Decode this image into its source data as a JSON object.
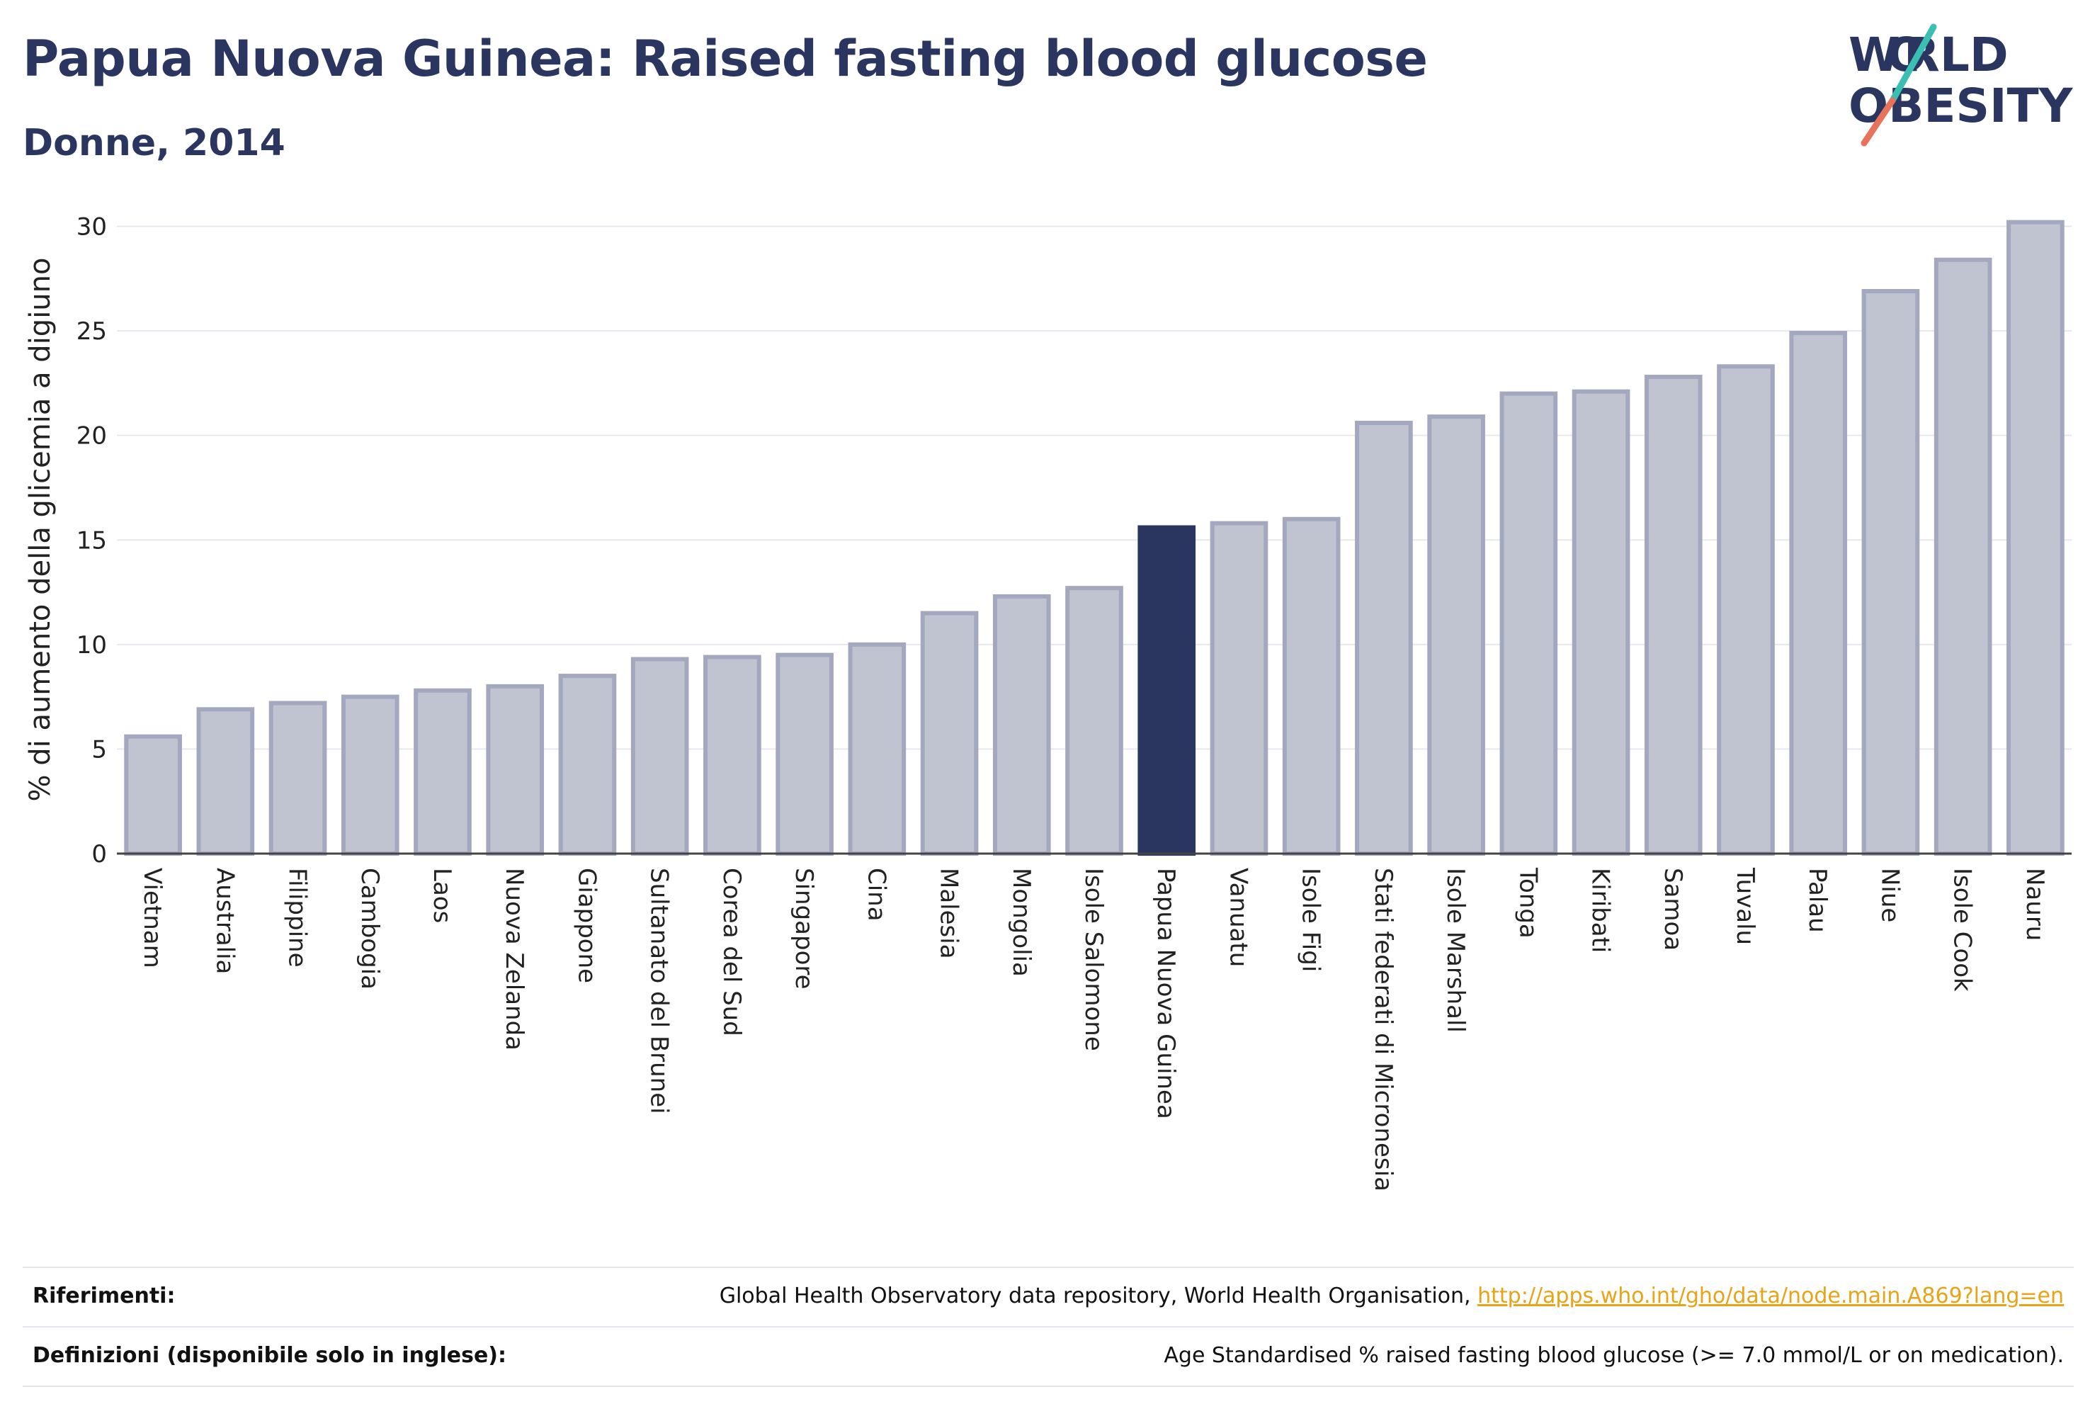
{
  "header": {
    "title": "Papua Nuova Guinea: Raised fasting blood glucose",
    "subtitle": "Donne, 2014"
  },
  "logo": {
    "line1": "W RLD",
    "line2": "BESITY",
    "accent_colors": [
      "#3bbfb2",
      "#e8735a"
    ]
  },
  "colors": {
    "bar": "#c0c3d0",
    "bar_border": "#a3a8be",
    "highlight": "#2a3560",
    "grid": "#e6e8ef",
    "link": "#e8a317"
  },
  "chart_data": {
    "type": "bar",
    "title": "Papua Nuova Guinea: Raised fasting blood glucose",
    "subtitle": "Donne, 2014",
    "xlabel": "",
    "ylabel": "% di aumento della glicemia a digiuno",
    "ylim": [
      0,
      31
    ],
    "yticks": [
      0,
      5,
      10,
      15,
      20,
      25,
      30
    ],
    "grid": true,
    "highlight": "Papua Nuova Guinea",
    "categories": [
      "Vietnam",
      "Australia",
      "Filippine",
      "Cambogia",
      "Laos",
      "Nuova Zelanda",
      "Giappone",
      "Sultanato del Brunei",
      "Corea del Sud",
      "Singapore",
      "Cina",
      "Malesia",
      "Mongolia",
      "Isole Salomone",
      "Papua Nuova Guinea",
      "Vanuatu",
      "Isole Figi",
      "Stati federati di Micronesia",
      "Isole Marshall",
      "Tonga",
      "Kiribati",
      "Samoa",
      "Tuvalu",
      "Palau",
      "Niue",
      "Isole Cook",
      "Nauru"
    ],
    "values": [
      5.6,
      6.9,
      7.2,
      7.5,
      7.8,
      8.0,
      8.5,
      9.3,
      9.4,
      9.5,
      10.0,
      11.5,
      12.3,
      12.7,
      15.6,
      15.8,
      16.0,
      20.6,
      20.9,
      22.0,
      22.1,
      22.8,
      23.3,
      24.9,
      26.9,
      28.4,
      30.2
    ]
  },
  "footer": {
    "references_label": "Riferimenti:",
    "references_text": "Global Health Observatory data repository, World Health Organisation,",
    "references_link": "http://apps.who.int/gho/data/node.main.A869?lang=en",
    "definitions_label": "Definizioni (disponibile solo in inglese):",
    "definitions_text": "Age Standardised % raised fasting blood glucose (>= 7.0 mmol/L or on medication)."
  }
}
